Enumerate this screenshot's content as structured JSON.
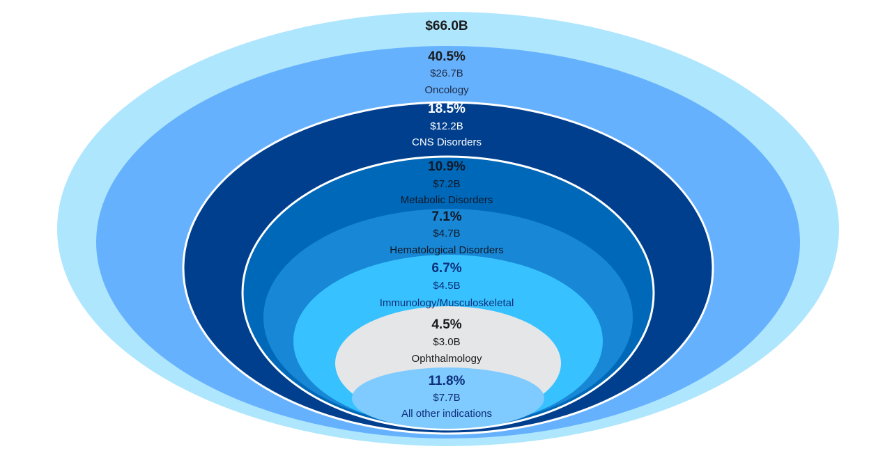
{
  "total": "$66.0B",
  "colors": {
    "outer": "#aee6fd",
    "oncology": "#66b1fd",
    "cns": "#003f8e",
    "metabolic": "#0068b8",
    "hematological": "#1888d6",
    "immunology": "#37c2ff",
    "ophthalmology": "#e5e6e8",
    "other": "#7fcafe",
    "white_border": "#ffffff"
  },
  "segments": [
    {
      "pct": "40.5%",
      "amount": "$26.7B",
      "label": "Oncology"
    },
    {
      "pct": "18.5%",
      "amount": "$12.2B",
      "label": "CNS Disorders"
    },
    {
      "pct": "10.9%",
      "amount": "$7.2B",
      "label": "Metabolic Disorders"
    },
    {
      "pct": "7.1%",
      "amount": "$4.7B",
      "label": "Hematological Disorders"
    },
    {
      "pct": "6.7%",
      "amount": "$4.5B",
      "label": "Immunology/Musculoskeletal"
    },
    {
      "pct": "4.5%",
      "amount": "$3.0B",
      "label": "Ophthalmology"
    },
    {
      "pct": "11.8%",
      "amount": "$7.7B",
      "label": "All other indications"
    }
  ]
}
